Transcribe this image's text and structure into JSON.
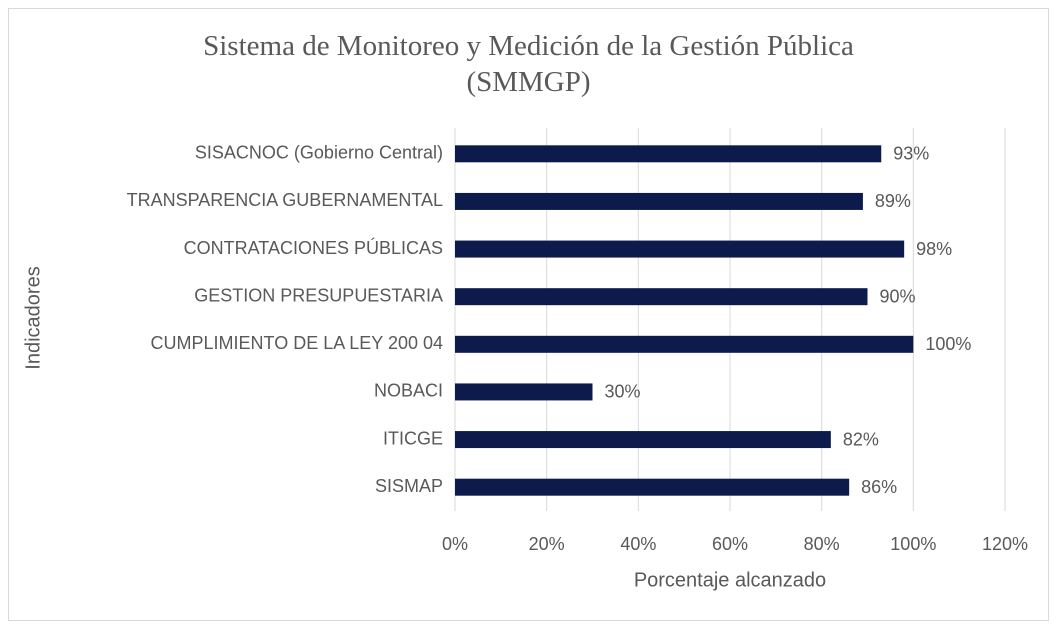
{
  "chart_data": {
    "type": "bar",
    "orientation": "horizontal",
    "title": "Sistema de Monitoreo y Medición de la Gestión Pública (SMMGP)",
    "x_label": "Porcentaje alcanzado",
    "y_label": "Indicadores",
    "categories": [
      "SISACNOC (Gobierno Central)",
      "TRANSPARENCIA GUBERNAMENTAL",
      "CONTRATACIONES PÚBLICAS",
      "GESTION PRESUPUESTARIA",
      "CUMPLIMIENTO DE LA LEY 200 04",
      "NOBACI",
      "ITICGE",
      "SISMAP"
    ],
    "values": [
      93,
      89,
      98,
      90,
      100,
      30,
      82,
      86
    ],
    "value_labels": [
      "93%",
      "89%",
      "98%",
      "90%",
      "100%",
      "30%",
      "82%",
      "86%"
    ],
    "color": "#0d1b4c",
    "xlim": [
      0,
      120
    ],
    "xticks": [
      {
        "value": 0,
        "label": "0%"
      },
      {
        "value": 20,
        "label": "20%"
      },
      {
        "value": 40,
        "label": "40%"
      },
      {
        "value": 60,
        "label": "60%"
      },
      {
        "value": 80,
        "label": "80%"
      },
      {
        "value": 100,
        "label": "100%"
      },
      {
        "value": 120,
        "label": "120%"
      }
    ],
    "grid": true
  }
}
